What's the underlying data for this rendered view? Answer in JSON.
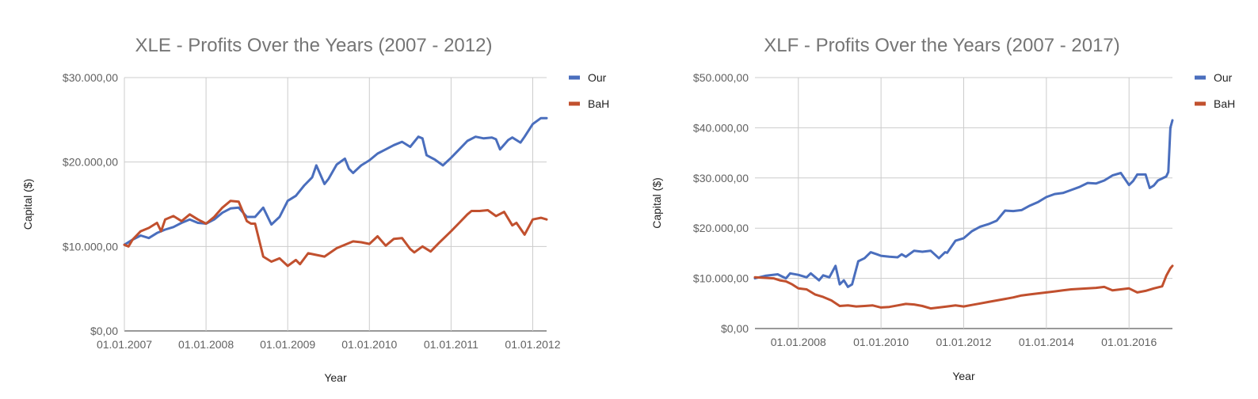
{
  "chart_data": [
    {
      "type": "line",
      "title": "XLE - Profits Over the Years  (2007 - 2012)",
      "xlabel": "Year",
      "ylabel": "Capital ($)",
      "xlim": [
        2007.0,
        2012.17
      ],
      "ylim": [
        0,
        30000
      ],
      "y_ticks": [
        0,
        10000,
        20000,
        30000
      ],
      "y_tick_labels": [
        "$0,00",
        "$10.000,00",
        "$20.000,00",
        "$30.000,00"
      ],
      "x_ticks": [
        2007,
        2008,
        2009,
        2010,
        2011,
        2012
      ],
      "x_tick_labels": [
        "01.01.2007",
        "01.01.2008",
        "01.01.2009",
        "01.01.2010",
        "01.01.2011",
        "01.01.2012"
      ],
      "grid": true,
      "legend_position": "right",
      "series": [
        {
          "name": "Our",
          "color": "#4a6ebd",
          "x": [
            2007.0,
            2007.1,
            2007.2,
            2007.3,
            2007.4,
            2007.5,
            2007.6,
            2007.7,
            2007.8,
            2007.9,
            2008.0,
            2008.1,
            2008.2,
            2008.3,
            2008.4,
            2008.5,
            2008.6,
            2008.7,
            2008.8,
            2008.9,
            2009.0,
            2009.1,
            2009.2,
            2009.3,
            2009.35,
            2009.45,
            2009.5,
            2009.6,
            2009.7,
            2009.75,
            2009.8,
            2009.9,
            2010.0,
            2010.1,
            2010.2,
            2010.3,
            2010.4,
            2010.5,
            2010.6,
            2010.65,
            2010.7,
            2010.8,
            2010.9,
            2011.0,
            2011.1,
            2011.2,
            2011.3,
            2011.4,
            2011.5,
            2011.55,
            2011.6,
            2011.7,
            2011.75,
            2011.85,
            2011.9,
            2012.0,
            2012.1,
            2012.17
          ],
          "y": [
            10200,
            10800,
            11300,
            11000,
            11600,
            12000,
            12300,
            12800,
            13200,
            12800,
            12700,
            13200,
            14000,
            14500,
            14600,
            13500,
            13500,
            14600,
            12600,
            13500,
            15400,
            16000,
            17200,
            18200,
            19600,
            17400,
            18000,
            19700,
            20400,
            19200,
            18700,
            19600,
            20200,
            21000,
            21500,
            22000,
            22400,
            21800,
            23000,
            22800,
            20800,
            20300,
            19600,
            20500,
            21500,
            22500,
            23000,
            22800,
            22900,
            22700,
            21500,
            22600,
            22900,
            22300,
            23000,
            24500,
            25200,
            25200
          ]
        },
        {
          "name": "BaH",
          "color": "#c1502e",
          "x": [
            2007.0,
            2007.05,
            2007.1,
            2007.2,
            2007.3,
            2007.4,
            2007.45,
            2007.5,
            2007.6,
            2007.7,
            2007.8,
            2007.9,
            2008.0,
            2008.1,
            2008.2,
            2008.3,
            2008.4,
            2008.5,
            2008.55,
            2008.6,
            2008.7,
            2008.8,
            2008.9,
            2009.0,
            2009.1,
            2009.15,
            2009.25,
            2009.35,
            2009.45,
            2009.6,
            2009.8,
            2009.9,
            2010.0,
            2010.1,
            2010.2,
            2010.3,
            2010.4,
            2010.5,
            2010.55,
            2010.65,
            2010.75,
            2010.85,
            2011.0,
            2011.1,
            2011.2,
            2011.25,
            2011.35,
            2011.45,
            2011.55,
            2011.65,
            2011.75,
            2011.8,
            2011.9,
            2012.0,
            2012.1,
            2012.17
          ],
          "y": [
            10200,
            10000,
            10800,
            11800,
            12200,
            12800,
            11800,
            13200,
            13600,
            13000,
            13800,
            13200,
            12700,
            13500,
            14600,
            15400,
            15300,
            13000,
            12700,
            12700,
            8800,
            8200,
            8600,
            7700,
            8400,
            7900,
            9200,
            9000,
            8800,
            9800,
            10600,
            10500,
            10300,
            11200,
            10100,
            10900,
            11000,
            9700,
            9300,
            10000,
            9400,
            10400,
            11800,
            12800,
            13800,
            14200,
            14200,
            14300,
            13600,
            14100,
            12500,
            12800,
            11400,
            13200,
            13400,
            13200
          ]
        }
      ]
    },
    {
      "type": "line",
      "title": "XLF - Profits Over the Years  (2007 - 2017)",
      "xlabel": "Year",
      "ylabel": "Capital ($)",
      "xlim": [
        2006.95,
        2017.05
      ],
      "ylim": [
        0,
        50000
      ],
      "y_ticks": [
        0,
        10000,
        20000,
        30000,
        40000,
        50000
      ],
      "y_tick_labels": [
        "$0,00",
        "$10.000,00",
        "$20.000,00",
        "$30.000,00",
        "$40.000,00",
        "$50.000,00"
      ],
      "x_ticks": [
        2008,
        2010,
        2012,
        2014,
        2016
      ],
      "x_tick_labels": [
        "01.01.2008",
        "01.01.2010",
        "01.01.2012",
        "01.01.2014",
        "01.01.2016"
      ],
      "grid": true,
      "legend_position": "right",
      "series": [
        {
          "name": "Our",
          "color": "#4a6ebd",
          "x": [
            2006.95,
            2007.2,
            2007.5,
            2007.7,
            2007.8,
            2008.0,
            2008.2,
            2008.3,
            2008.5,
            2008.6,
            2008.75,
            2008.9,
            2009.0,
            2009.1,
            2009.2,
            2009.3,
            2009.45,
            2009.6,
            2009.75,
            2009.9,
            2010.0,
            2010.2,
            2010.4,
            2010.5,
            2010.6,
            2010.8,
            2011.0,
            2011.2,
            2011.4,
            2011.55,
            2011.6,
            2011.8,
            2012.0,
            2012.2,
            2012.4,
            2012.6,
            2012.8,
            2013.0,
            2013.2,
            2013.4,
            2013.6,
            2013.8,
            2014.0,
            2014.2,
            2014.4,
            2014.6,
            2014.8,
            2015.0,
            2015.2,
            2015.4,
            2015.6,
            2015.8,
            2016.0,
            2016.1,
            2016.2,
            2016.4,
            2016.5,
            2016.6,
            2016.7,
            2016.9,
            2016.95,
            2017.0,
            2017.05
          ],
          "y": [
            10000,
            10500,
            10800,
            10000,
            11000,
            10700,
            10200,
            11000,
            9600,
            10600,
            10200,
            12500,
            8800,
            9600,
            8300,
            8800,
            13400,
            14000,
            15200,
            14800,
            14500,
            14300,
            14200,
            14800,
            14300,
            15500,
            15300,
            15500,
            14000,
            15200,
            15100,
            17500,
            18000,
            19400,
            20300,
            20800,
            21500,
            23500,
            23400,
            23600,
            24500,
            25200,
            26200,
            26800,
            27000,
            27600,
            28200,
            29000,
            28900,
            29500,
            30500,
            31000,
            28600,
            29400,
            30700,
            30700,
            28000,
            28500,
            29500,
            30300,
            31200,
            40000,
            41500
          ]
        },
        {
          "name": "BaH",
          "color": "#c1502e",
          "x": [
            2006.95,
            2007.2,
            2007.4,
            2007.55,
            2007.7,
            2007.85,
            2008.0,
            2008.2,
            2008.4,
            2008.6,
            2008.8,
            2009.0,
            2009.2,
            2009.4,
            2009.6,
            2009.8,
            2010.0,
            2010.2,
            2010.4,
            2010.6,
            2010.8,
            2011.0,
            2011.2,
            2011.4,
            2011.6,
            2011.8,
            2012.0,
            2012.2,
            2012.4,
            2012.6,
            2012.8,
            2013.0,
            2013.2,
            2013.4,
            2013.6,
            2013.8,
            2014.0,
            2014.2,
            2014.4,
            2014.6,
            2014.8,
            2015.0,
            2015.2,
            2015.4,
            2015.6,
            2015.8,
            2016.0,
            2016.2,
            2016.4,
            2016.6,
            2016.8,
            2016.9,
            2017.0,
            2017.05
          ],
          "y": [
            10200,
            10100,
            10000,
            9600,
            9400,
            8800,
            8000,
            7800,
            6800,
            6300,
            5600,
            4500,
            4600,
            4400,
            4500,
            4600,
            4200,
            4300,
            4600,
            4900,
            4800,
            4500,
            4000,
            4200,
            4400,
            4600,
            4400,
            4700,
            5000,
            5300,
            5600,
            5900,
            6200,
            6600,
            6800,
            7000,
            7200,
            7400,
            7600,
            7800,
            7900,
            8000,
            8100,
            8300,
            7600,
            7800,
            8000,
            7200,
            7500,
            8000,
            8400,
            10500,
            12000,
            12500
          ]
        }
      ]
    }
  ]
}
